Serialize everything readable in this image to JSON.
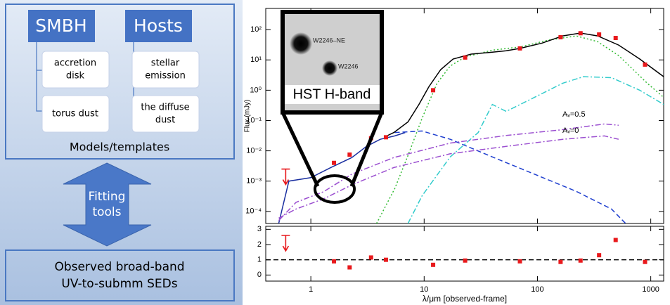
{
  "diagram": {
    "tabs": [
      {
        "label": "SMBH"
      },
      {
        "label": "Hosts"
      }
    ],
    "components": [
      {
        "lines": [
          "accretion",
          "disk"
        ]
      },
      {
        "lines": [
          "torus dust"
        ]
      },
      {
        "lines": [
          "stellar",
          "emission"
        ]
      },
      {
        "lines": [
          "the diffuse",
          "dust"
        ]
      }
    ],
    "models_label": "Models/templates",
    "arrow_lines": [
      "Fitting",
      "tools"
    ],
    "observed_lines": [
      "Observed broad-band",
      "UV-to-submm SEDs"
    ]
  },
  "inset": {
    "title": "HST H-band",
    "sources": [
      "W2246–NE",
      "W2246"
    ]
  },
  "chart_data": [
    {
      "type": "line",
      "ylabel": "Flux (mJy)",
      "xlog": true,
      "ylog": true,
      "xlim": [
        0.4,
        1300
      ],
      "ylim": [
        4e-05,
        500
      ],
      "xticks": [
        1,
        10,
        100,
        1000
      ],
      "yticks": [
        {
          "value": 100,
          "label": "10²"
        },
        {
          "value": 10,
          "label": "10¹"
        },
        {
          "value": 1,
          "label": "10⁰"
        },
        {
          "value": 0.1,
          "label": "10⁻¹"
        },
        {
          "value": 0.01,
          "label": "10⁻²"
        },
        {
          "value": 0.001,
          "label": "10⁻³"
        },
        {
          "value": 0.0001,
          "label": "10⁻⁴"
        }
      ],
      "series": [
        {
          "color": "#1a2fa0",
          "style": "solid",
          "x": [
            0.52,
            0.64,
            1.0,
            1.5,
            2.3,
            3.1,
            4.1,
            5.5,
            6.8
          ],
          "values": [
            4e-05,
            0.001,
            0.0013,
            0.0028,
            0.006,
            0.014,
            0.024,
            0.031,
            0.04
          ]
        },
        {
          "color": "#1f3fcf",
          "style": "dashed",
          "x": [
            5.5,
            9.6,
            17,
            40,
            94,
            220,
            450,
            600
          ],
          "values": [
            0.04,
            0.045,
            0.024,
            0.0063,
            0.0017,
            0.00046,
            0.00012,
            4e-05
          ]
        },
        {
          "color": "#33bb33",
          "style": "dotted",
          "x": [
            3.8,
            5.5,
            7.2,
            9.6,
            13,
            17,
            23,
            40,
            71,
            125,
            220,
            340,
            520,
            930,
            1300
          ],
          "values": [
            4e-05,
            0.00057,
            0.007,
            0.12,
            1.7,
            6.3,
            12.5,
            21,
            27,
            45,
            62,
            40,
            14,
            1.7,
            0.58
          ]
        },
        {
          "color": "#33cccc",
          "style": "dashdot",
          "x": [
            7.2,
            9.6,
            17,
            30,
            40,
            53,
            94,
            167,
            255,
            450,
            800,
            1300
          ],
          "values": [
            4e-05,
            0.00033,
            0.0063,
            0.04,
            0.34,
            0.2,
            0.58,
            1.7,
            2.8,
            2.6,
            1.0,
            0.34
          ]
        },
        {
          "color": "#9b4fd0",
          "style": "dashdot",
          "x": [
            0.52,
            0.74,
            1.3,
            2.3,
            5.4,
            17,
            53,
            167,
            390,
            520
          ],
          "values": [
            5e-05,
            0.0002,
            0.00045,
            0.0017,
            0.006,
            0.018,
            0.032,
            0.05,
            0.077,
            0.07
          ]
        },
        {
          "color": "#9b4fd0",
          "style": "dashdot",
          "x": [
            0.52,
            0.74,
            1.3,
            2.3,
            5.4,
            17,
            53,
            167,
            390,
            520
          ],
          "values": [
            6e-05,
            0.00012,
            0.00026,
            0.00075,
            0.0028,
            0.008,
            0.014,
            0.024,
            0.031,
            0.024
          ]
        },
        {
          "color": "#000000",
          "style": "solid",
          "x": [
            4.6,
            5.4,
            7.2,
            9,
            11,
            14,
            18,
            26,
            40,
            53,
            70,
            110,
            167,
            240,
            340,
            520,
            800,
            1300
          ],
          "values": [
            0.03,
            0.04,
            0.09,
            0.34,
            1.3,
            4.8,
            10.7,
            15.5,
            18,
            20,
            24,
            36,
            62,
            77,
            62,
            31,
            10.7,
            2.8
          ]
        }
      ],
      "points": {
        "color": "#e8191c",
        "x": [
          1.6,
          2.2,
          3.4,
          4.6,
          12,
          23,
          70,
          160,
          240,
          350,
          490,
          890
        ],
        "values": [
          0.004,
          0.0075,
          0.026,
          0.028,
          1.0,
          12,
          24,
          56,
          76,
          69,
          53,
          7
        ]
      },
      "upper_limits": {
        "color": "#e8191c",
        "x": [
          0.6
        ],
        "values": [
          0.0025
        ]
      },
      "annotations": [
        "Aᵥ=0.5",
        "Aᵥ=0"
      ]
    },
    {
      "type": "scatter",
      "xlabel": "λ/μm [observed-frame]",
      "xlog": true,
      "ylog": false,
      "xlim": [
        0.4,
        1300
      ],
      "ylim": [
        -0.4,
        3.2
      ],
      "xticks": [
        1,
        10,
        100,
        1000
      ],
      "yticks": [
        0,
        1,
        2,
        3
      ],
      "hline": 1,
      "points": {
        "color": "#e8191c",
        "x": [
          1.6,
          2.2,
          3.4,
          4.6,
          12,
          23,
          70,
          160,
          240,
          350,
          490,
          890
        ],
        "values": [
          0.9,
          0.5,
          1.15,
          1.0,
          0.67,
          0.95,
          0.9,
          0.86,
          0.95,
          1.3,
          2.3,
          0.86
        ]
      },
      "upper_limits": {
        "color": "#e8191c",
        "x": [
          0.6
        ],
        "values": [
          2.6
        ]
      }
    }
  ]
}
